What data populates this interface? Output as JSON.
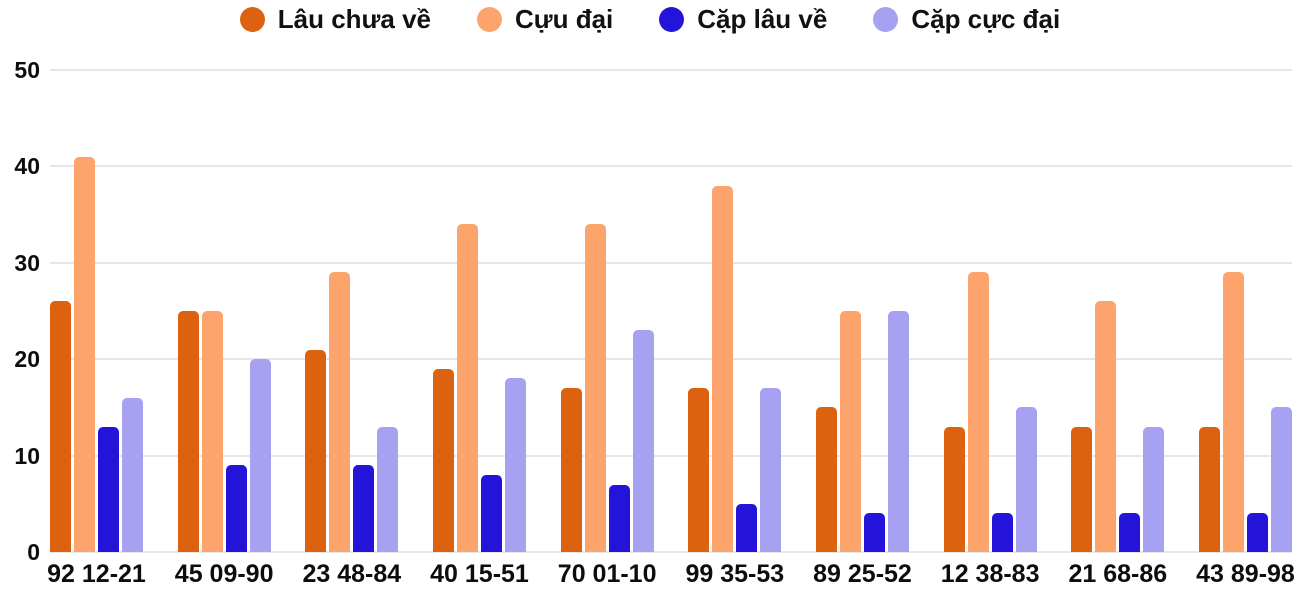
{
  "chart_data": {
    "type": "bar",
    "title": "",
    "xlabel": "",
    "ylabel": "",
    "categories": [
      "92 12-21",
      "45 09-90",
      "23 48-84",
      "40 15-51",
      "70 01-10",
      "99 35-53",
      "89 25-52",
      "12 38-83",
      "21 68-86",
      "43 89-98"
    ],
    "series": [
      {
        "name": "Lâu chưa về",
        "color": "#dc6210",
        "values": [
          26,
          25,
          21,
          19,
          17,
          17,
          15,
          13,
          13,
          13
        ]
      },
      {
        "name": "Cựu đại",
        "color": "#fca46c",
        "values": [
          41,
          25,
          29,
          34,
          34,
          38,
          25,
          29,
          26,
          29
        ]
      },
      {
        "name": "Cặp lâu về",
        "color": "#2413d8",
        "values": [
          13,
          9,
          9,
          8,
          7,
          5,
          4,
          4,
          4,
          4
        ]
      },
      {
        "name": "Cặp cực đại",
        "color": "#a7a1f2",
        "values": [
          16,
          20,
          13,
          18,
          23,
          17,
          25,
          15,
          13,
          15
        ]
      }
    ],
    "ylim": [
      0,
      50
    ],
    "yticks": [
      "0",
      "10",
      "20",
      "30",
      "40",
      "50"
    ],
    "grid": true,
    "legend_position": "top"
  },
  "colors": {
    "grid_line": "#e6e6e6",
    "axis_text": "#0d0d0d",
    "background": "#ffffff"
  }
}
